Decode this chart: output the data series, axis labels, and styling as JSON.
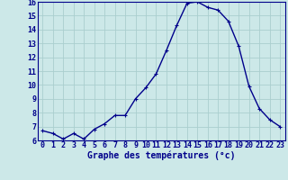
{
  "x": [
    0,
    1,
    2,
    3,
    4,
    5,
    6,
    7,
    8,
    9,
    10,
    11,
    12,
    13,
    14,
    15,
    16,
    17,
    18,
    19,
    20,
    21,
    22,
    23
  ],
  "y": [
    6.7,
    6.5,
    6.1,
    6.5,
    6.1,
    6.8,
    7.2,
    7.8,
    7.8,
    9.0,
    9.8,
    10.8,
    12.5,
    14.3,
    15.9,
    16.0,
    15.6,
    15.4,
    14.6,
    12.8,
    9.9,
    8.3,
    7.5,
    7.0
  ],
  "xlabel": "Graphe des températures (°c)",
  "line_color": "#00008b",
  "marker": "+",
  "marker_color": "#00008b",
  "bg_color": "#cce8e8",
  "grid_color": "#aacece",
  "ylim": [
    6,
    16
  ],
  "yticks": [
    6,
    7,
    8,
    9,
    10,
    11,
    12,
    13,
    14,
    15,
    16
  ],
  "xticks": [
    0,
    1,
    2,
    3,
    4,
    5,
    6,
    7,
    8,
    9,
    10,
    11,
    12,
    13,
    14,
    15,
    16,
    17,
    18,
    19,
    20,
    21,
    22,
    23
  ],
  "xtick_labels": [
    "0",
    "1",
    "2",
    "3",
    "4",
    "5",
    "6",
    "7",
    "8",
    "9",
    "10",
    "11",
    "12",
    "13",
    "14",
    "15",
    "16",
    "17",
    "18",
    "19",
    "20",
    "21",
    "22",
    "23"
  ],
  "axis_label_color": "#00008b",
  "tick_color": "#00008b",
  "xlabel_fontsize": 7.0,
  "tick_fontsize": 6.0,
  "linewidth": 1.0,
  "markersize": 3.5,
  "spine_color": "#00008b"
}
